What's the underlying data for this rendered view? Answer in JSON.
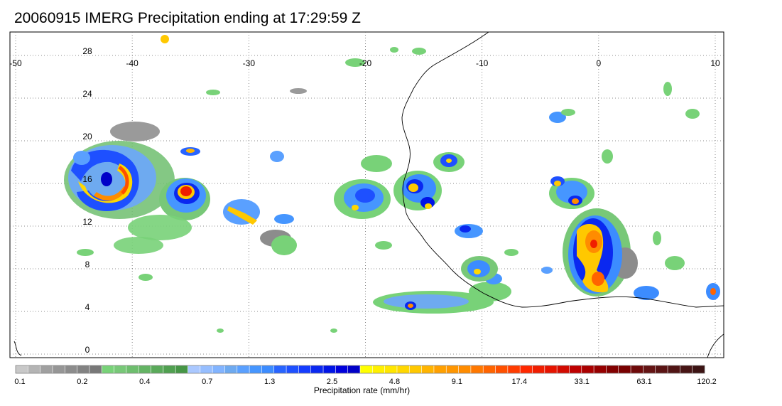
{
  "title": "20060915 IMERG Precipitation ending at 17:29:59 Z",
  "map": {
    "lon_range": [
      -50,
      10
    ],
    "lat_range": [
      -0.5,
      29.5
    ],
    "lon_ticks": [
      -50,
      -40,
      -30,
      -20,
      -10,
      0,
      10
    ],
    "lat_ticks": [
      0,
      4,
      8,
      12,
      16,
      20,
      24,
      28
    ],
    "lon_tick_labels": [
      "-50",
      "-40",
      "-30",
      "-20",
      "-10",
      "0",
      "10"
    ],
    "lat_tick_labels": [
      "0",
      "4",
      "8",
      "12",
      "16",
      "20",
      "24",
      "28"
    ],
    "grid": "dotted"
  },
  "colorbar": {
    "caption": "Precipitation rate (mm/hr)",
    "tick_labels": [
      "0.1",
      "0.2",
      "0.4",
      "0.7",
      "1.3",
      "2.5",
      "4.8",
      "9.1",
      "17.4",
      "33.1",
      "63.1",
      "120.2"
    ],
    "colors": [
      "#c8c8c8",
      "#b4b4b4",
      "#a0a0a0",
      "#969696",
      "#8c8c8c",
      "#828282",
      "#787878",
      "#78d278",
      "#78c878",
      "#6ebe6e",
      "#64b464",
      "#5aaa5a",
      "#50a050",
      "#469646",
      "#aac8ff",
      "#96beff",
      "#82b4ff",
      "#6eaaf0",
      "#5aa0ff",
      "#4696ff",
      "#3c8cff",
      "#2864ff",
      "#1e50ff",
      "#143cff",
      "#0a28f0",
      "#0014e6",
      "#0000dc",
      "#0000c8",
      "#ffff00",
      "#fff000",
      "#ffe600",
      "#ffd700",
      "#ffc800",
      "#ffb400",
      "#ffa000",
      "#ff9600",
      "#ff8c00",
      "#ff7800",
      "#ff6400",
      "#ff5000",
      "#ff3c00",
      "#ff2800",
      "#f01e00",
      "#e61400",
      "#d20a00",
      "#be0000",
      "#aa0000",
      "#960000",
      "#820000",
      "#780000",
      "#6e0a0a",
      "#641414",
      "#5a1414",
      "#501414",
      "#461414",
      "#3c1414"
    ]
  },
  "precip_systems": [
    {
      "lon": -44.2,
      "lat": 16.6,
      "kind": "hurricane"
    },
    {
      "lon": -35.5,
      "lat": 15.8,
      "kind": "cluster"
    },
    {
      "lon": -29.9,
      "lat": 13.8,
      "kind": "band"
    },
    {
      "lon": -21.0,
      "lat": 14.8,
      "kind": "band"
    },
    {
      "lon": -15.8,
      "lat": 16.2,
      "kind": "cluster"
    },
    {
      "lon": -12.6,
      "lat": 18.4,
      "kind": "cluster"
    },
    {
      "lon": -1.6,
      "lat": 9.6,
      "kind": "mcs"
    },
    {
      "lon": -1.9,
      "lat": 15.5,
      "kind": "cluster"
    },
    {
      "lon": -19.0,
      "lat": 4.8,
      "kind": "band"
    },
    {
      "lon": -10.0,
      "lat": 7.0,
      "kind": "cluster"
    },
    {
      "lon": 9.5,
      "lat": 5.9,
      "kind": "cell"
    }
  ]
}
